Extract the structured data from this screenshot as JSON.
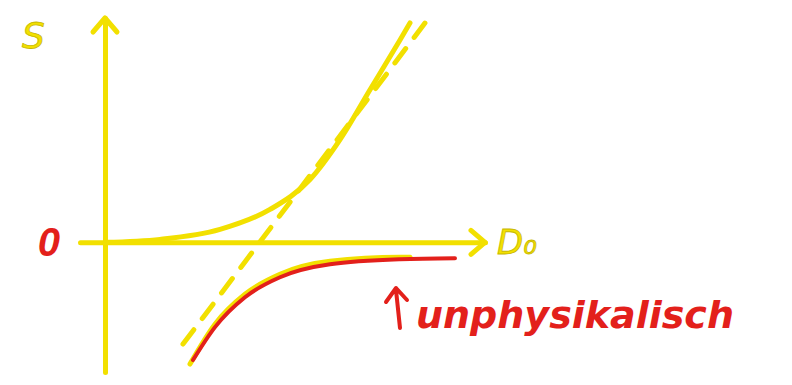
{
  "chart_data": {
    "type": "line",
    "x_label": "D₀",
    "y_label": "S",
    "annotation": "unphysikalisch",
    "xlim": [
      -0.25,
      3.8
    ],
    "ylim": [
      -1.3,
      2.25
    ],
    "xticks": [],
    "yticks": [
      0
    ],
    "tick_labels": "y",
    "grid": false,
    "series": [
      {
        "color": "#f2e000",
        "line_style": "solid",
        "x": [
          0,
          0.55,
          1.15,
          1.65,
          2.05,
          2.35,
          2.65,
          2.95,
          3.05
        ],
        "values": [
          0,
          0.03,
          0.13,
          0.33,
          0.63,
          1.03,
          1.53,
          2.03,
          2.2
        ]
      },
      {
        "color": "#f2e000",
        "line_style": "dashed",
        "x": [
          0.78,
          3.2
        ],
        "values": [
          -1.02,
          2.2
        ]
      },
      {
        "color": "#f2e000",
        "line_style": "solid",
        "x": [
          0.85,
          1.1,
          1.4,
          1.75,
          2.25,
          2.95,
          3.05
        ],
        "values": [
          -1.22,
          -0.82,
          -0.52,
          -0.32,
          -0.19,
          -0.15,
          -0.15
        ]
      },
      {
        "color": "#e3201b",
        "line_style": "solid",
        "x": [
          0.88,
          1.1,
          1.4,
          1.75,
          2.25,
          2.95,
          3.5
        ],
        "values": [
          -1.18,
          -0.85,
          -0.55,
          -0.35,
          -0.22,
          -0.17,
          -0.16
        ]
      }
    ]
  }
}
